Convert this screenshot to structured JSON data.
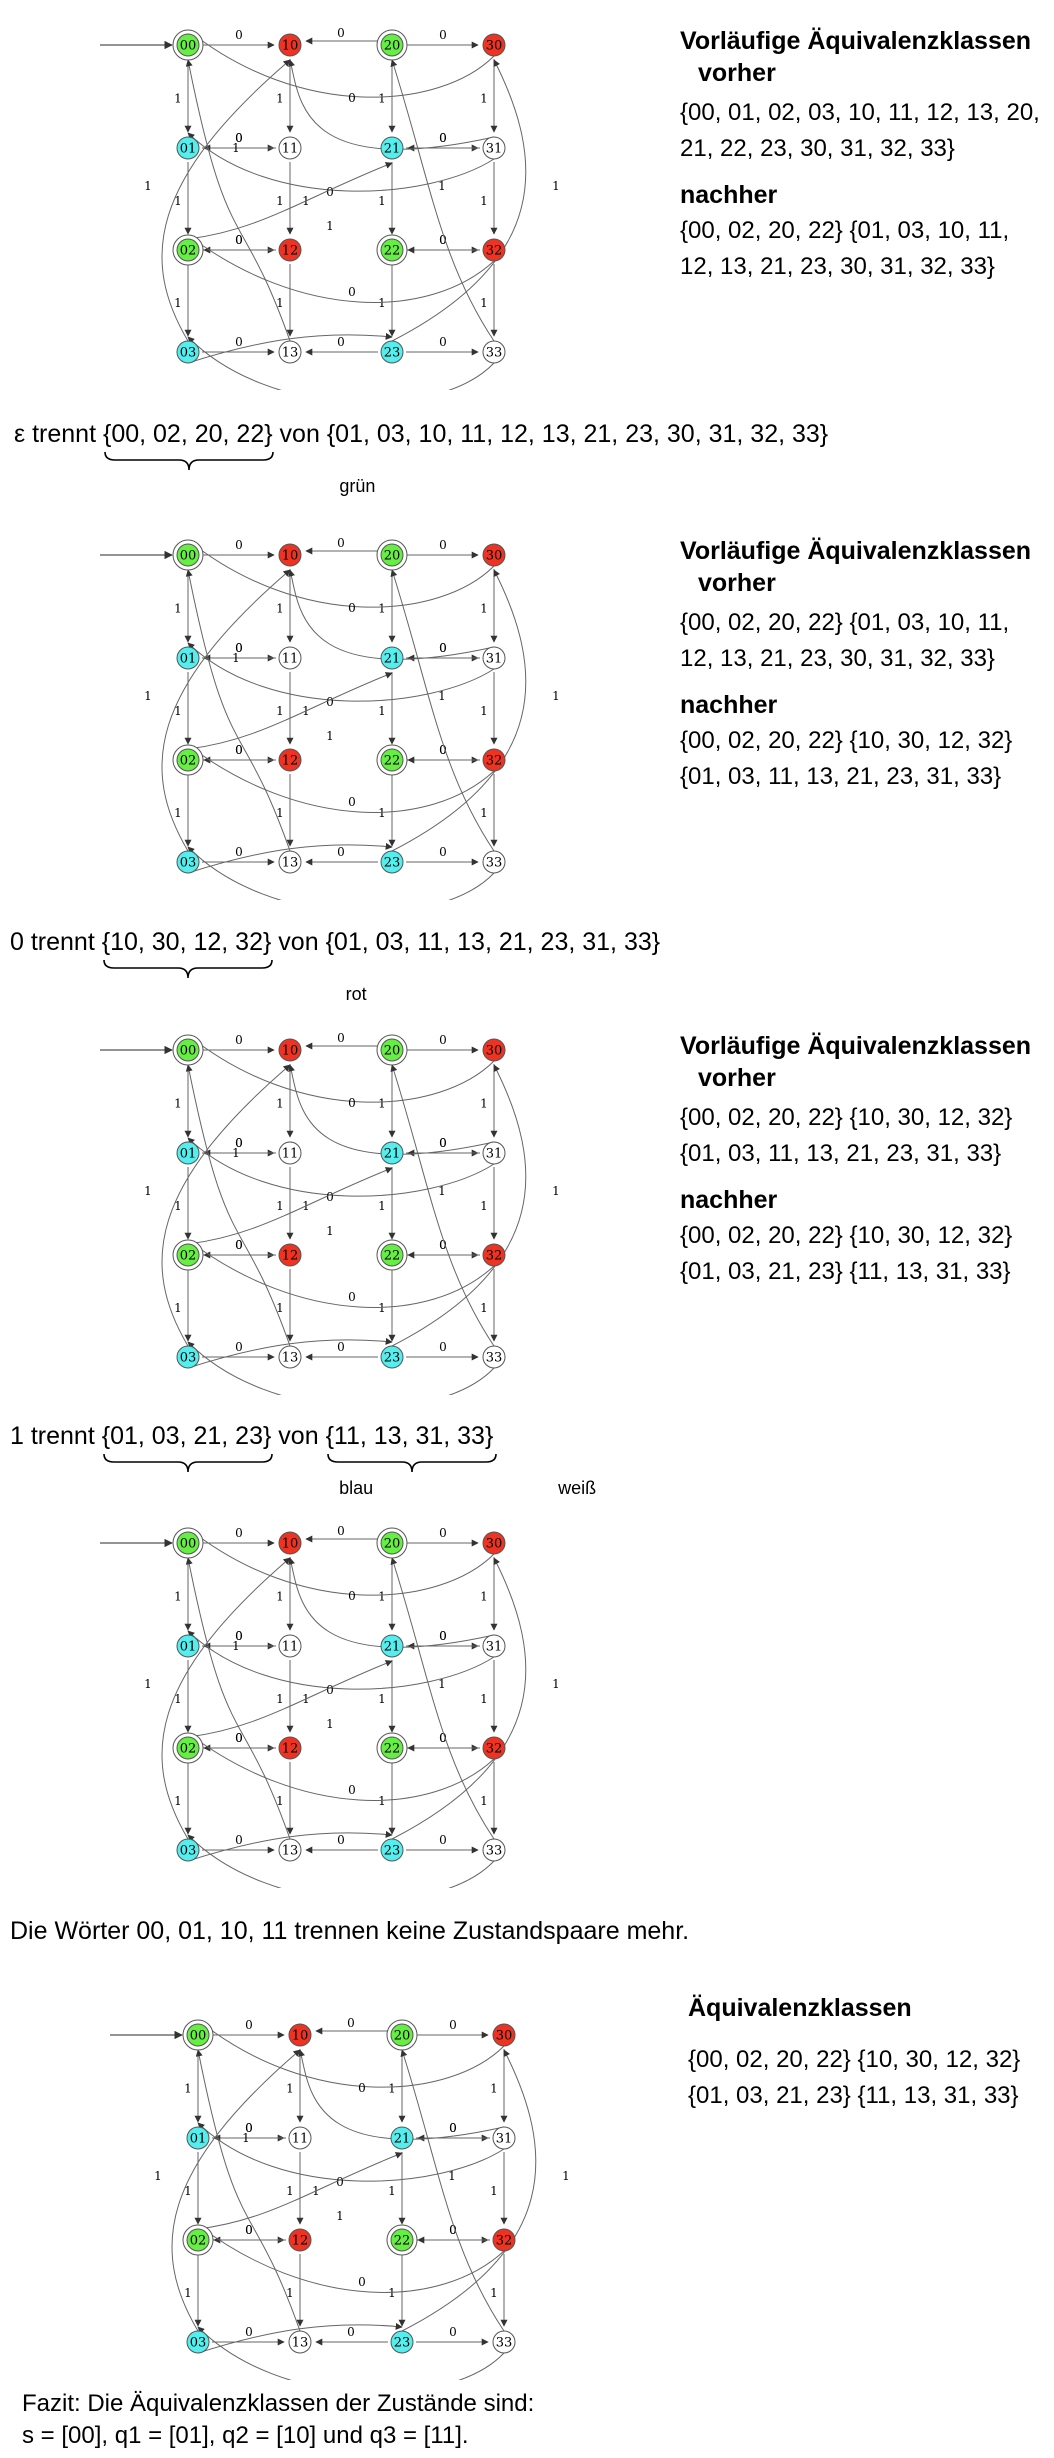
{
  "states": [
    "00",
    "10",
    "20",
    "30",
    "01",
    "11",
    "21",
    "31",
    "02",
    "12",
    "22",
    "32",
    "03",
    "13",
    "23",
    "33"
  ],
  "colors": {
    "green": "#66ee44",
    "red": "#ee3322",
    "cyan": "#55eeee",
    "white": "#ffffff"
  },
  "diagrams": [
    {
      "colors": {
        "00": "green",
        "10": "red",
        "20": "green",
        "30": "red",
        "01": "cyan",
        "11": "white",
        "21": "cyan",
        "31": "white",
        "02": "green",
        "12": "red",
        "22": "green",
        "32": "red",
        "03": "cyan",
        "13": "white",
        "23": "cyan",
        "33": "white"
      }
    },
    {
      "colors": {
        "00": "green",
        "10": "red",
        "20": "green",
        "30": "red",
        "01": "cyan",
        "11": "white",
        "21": "cyan",
        "31": "white",
        "02": "green",
        "12": "red",
        "22": "green",
        "32": "red",
        "03": "cyan",
        "13": "white",
        "23": "cyan",
        "33": "white"
      }
    },
    {
      "colors": {
        "00": "green",
        "10": "red",
        "20": "green",
        "30": "red",
        "01": "cyan",
        "11": "white",
        "21": "cyan",
        "31": "white",
        "02": "green",
        "12": "red",
        "22": "green",
        "32": "red",
        "03": "cyan",
        "13": "white",
        "23": "cyan",
        "33": "white"
      }
    },
    {
      "colors": {
        "00": "green",
        "10": "red",
        "20": "green",
        "30": "red",
        "01": "cyan",
        "11": "white",
        "21": "cyan",
        "31": "white",
        "02": "green",
        "12": "red",
        "22": "green",
        "32": "red",
        "03": "cyan",
        "13": "white",
        "23": "cyan",
        "33": "white"
      }
    },
    {
      "colors": {
        "00": "green",
        "10": "red",
        "20": "green",
        "30": "red",
        "01": "cyan",
        "11": "white",
        "21": "cyan",
        "31": "white",
        "02": "green",
        "12": "red",
        "22": "green",
        "32": "red",
        "03": "cyan",
        "13": "white",
        "23": "cyan",
        "33": "white"
      }
    }
  ],
  "edge_labels": {
    "zero": "0",
    "one": "1"
  },
  "panels": [
    {
      "title": "Vorläufige Äquivalenzklassen",
      "before_label": "vorher",
      "before": "{00, 01, 02, 03, 10, 11, 12, 13, 20, 21, 22, 23, 30, 31, 32, 33}",
      "after_label": "nachher",
      "after": "{00, 02, 20, 22} {01, 03, 10, 11, 12, 13, 21, 23, 30, 31, 32, 33}"
    },
    {
      "title": "Vorläufige Äquivalenzklassen",
      "before_label": "vorher",
      "before": "{00, 02, 20, 22} {01, 03, 10, 11, 12, 13, 21, 23, 30, 31, 32, 33}",
      "after_label": "nachher",
      "after": "{00, 02, 20, 22} {10, 30, 12, 32} {01, 03, 11, 13, 21, 23, 31, 33}"
    },
    {
      "title": "Vorläufige Äquivalenzklassen",
      "before_label": "vorher",
      "before": "{00, 02, 20, 22} {10, 30, 12, 32} {01, 03, 11, 13, 21, 23, 31, 33}",
      "after_label": "nachher",
      "after": "{00, 02, 20, 22} {10, 30, 12, 32} {01, 03, 21, 23} {11, 13, 31, 33}"
    }
  ],
  "separations": [
    {
      "prefix": "ε trennt",
      "group": "{00, 02, 20, 22}",
      "group_label": "grün",
      "mid": "von",
      "rest": "{01, 03, 10, 11, 12, 13, 21, 23, 30, 31, 32, 33}"
    },
    {
      "prefix": "0 trennt",
      "group": "{10, 30, 12, 32}",
      "group_label": "rot",
      "mid": "von",
      "rest": "{01, 03, 11, 13, 21, 23, 31, 33}"
    },
    {
      "prefix": "1 trennt",
      "group": "{01, 03, 21, 23}",
      "group_label": "blau",
      "mid": "von",
      "rest": "{11, 13, 31, 33}",
      "rest_label": "weiß"
    }
  ],
  "no_more_text": "Die Wörter 00, 01, 10, 11 trennen keine Zustandspaare mehr.",
  "final_panel": {
    "title": "Äquivalenzklassen",
    "classes": "{00, 02, 20, 22} {10, 30, 12, 32} {01, 03, 21, 23} {11, 13, 31, 33}"
  },
  "conclusion": {
    "line1": "Fazit: Die Äquivalenzklassen der Zustände sind:",
    "line2": "s = [00], q1 = [01], q2 = [10] und q3 = [11]."
  }
}
